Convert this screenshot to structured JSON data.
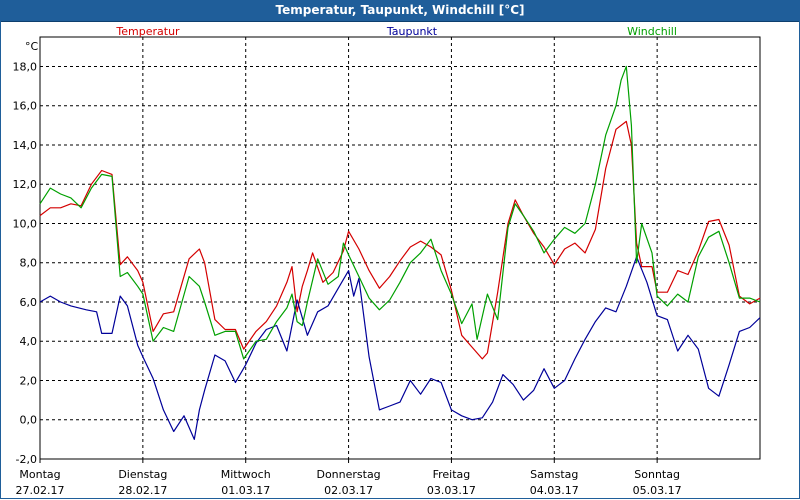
{
  "window": {
    "title": "Temperatur, Taupunkt, Windchill [°C]"
  },
  "chart_data": {
    "type": "line",
    "title": "Temperatur, Taupunkt, Windchill [°C]",
    "ylabel": "°C",
    "ylim": [
      -2,
      19.5
    ],
    "yticks": [
      "18,0",
      "16,0",
      "14,0",
      "12,0",
      "10,0",
      "8,0",
      "6,0",
      "4,0",
      "2,0",
      "0,0",
      "-2,0"
    ],
    "ytick_values": [
      18,
      16,
      14,
      12,
      10,
      8,
      6,
      4,
      2,
      0,
      -2
    ],
    "xlim": [
      0,
      7
    ],
    "grid": true,
    "legend_placement": "top",
    "xticks": [
      {
        "day": "Montag",
        "date": "27.02.17"
      },
      {
        "day": "Dienstag",
        "date": "28.02.17"
      },
      {
        "day": "Mittwoch",
        "date": "01.03.17"
      },
      {
        "day": "Donnerstag",
        "date": "02.03.17"
      },
      {
        "day": "Freitag",
        "date": "03.03.17"
      },
      {
        "day": "Samstag",
        "date": "04.03.17"
      },
      {
        "day": "Sonntag",
        "date": "05.03.17"
      }
    ],
    "series": [
      {
        "name": "Temperatur",
        "color": "#d40000",
        "points": [
          [
            0,
            10.4
          ],
          [
            0.1,
            10.8
          ],
          [
            0.2,
            10.8
          ],
          [
            0.3,
            11.0
          ],
          [
            0.4,
            10.9
          ],
          [
            0.5,
            12.0
          ],
          [
            0.6,
            12.7
          ],
          [
            0.7,
            12.5
          ],
          [
            0.78,
            7.9
          ],
          [
            0.85,
            8.3
          ],
          [
            0.95,
            7.6
          ],
          [
            1.0,
            7.0
          ],
          [
            1.1,
            4.5
          ],
          [
            1.2,
            5.4
          ],
          [
            1.3,
            5.5
          ],
          [
            1.45,
            8.2
          ],
          [
            1.55,
            8.7
          ],
          [
            1.6,
            8.0
          ],
          [
            1.7,
            5.1
          ],
          [
            1.8,
            4.6
          ],
          [
            1.9,
            4.6
          ],
          [
            1.98,
            3.6
          ],
          [
            2.1,
            4.5
          ],
          [
            2.2,
            5.0
          ],
          [
            2.3,
            5.8
          ],
          [
            2.4,
            7.0
          ],
          [
            2.45,
            7.8
          ],
          [
            2.5,
            5.5
          ],
          [
            2.55,
            6.8
          ],
          [
            2.6,
            7.6
          ],
          [
            2.65,
            8.5
          ],
          [
            2.75,
            7.0
          ],
          [
            2.85,
            7.5
          ],
          [
            2.95,
            8.6
          ],
          [
            3.0,
            9.6
          ],
          [
            3.1,
            8.7
          ],
          [
            3.2,
            7.6
          ],
          [
            3.3,
            6.7
          ],
          [
            3.4,
            7.3
          ],
          [
            3.5,
            8.1
          ],
          [
            3.6,
            8.8
          ],
          [
            3.7,
            9.1
          ],
          [
            3.8,
            8.8
          ],
          [
            3.9,
            8.4
          ],
          [
            4.0,
            6.6
          ],
          [
            4.1,
            4.3
          ],
          [
            4.2,
            3.7
          ],
          [
            4.3,
            3.1
          ],
          [
            4.35,
            3.4
          ],
          [
            4.45,
            6.5
          ],
          [
            4.55,
            10.0
          ],
          [
            4.62,
            11.2
          ],
          [
            4.7,
            10.4
          ],
          [
            4.8,
            9.5
          ],
          [
            4.9,
            8.8
          ],
          [
            5.0,
            7.9
          ],
          [
            5.1,
            8.7
          ],
          [
            5.2,
            9.0
          ],
          [
            5.3,
            8.5
          ],
          [
            5.4,
            9.7
          ],
          [
            5.5,
            12.8
          ],
          [
            5.6,
            14.8
          ],
          [
            5.7,
            15.2
          ],
          [
            5.75,
            14.0
          ],
          [
            5.8,
            9.0
          ],
          [
            5.85,
            7.8
          ],
          [
            5.95,
            7.8
          ],
          [
            6.0,
            6.5
          ],
          [
            6.1,
            6.5
          ],
          [
            6.2,
            7.6
          ],
          [
            6.3,
            7.4
          ],
          [
            6.4,
            8.6
          ],
          [
            6.5,
            10.1
          ],
          [
            6.6,
            10.2
          ],
          [
            6.7,
            8.9
          ],
          [
            6.8,
            6.3
          ],
          [
            6.9,
            5.9
          ],
          [
            7.0,
            6.2
          ]
        ]
      },
      {
        "name": "Taupunkt",
        "color": "#000099",
        "points": [
          [
            0,
            6.0
          ],
          [
            0.1,
            6.3
          ],
          [
            0.2,
            6.0
          ],
          [
            0.3,
            5.8
          ],
          [
            0.45,
            5.6
          ],
          [
            0.55,
            5.5
          ],
          [
            0.6,
            4.4
          ],
          [
            0.7,
            4.4
          ],
          [
            0.78,
            6.3
          ],
          [
            0.85,
            5.8
          ],
          [
            0.95,
            3.8
          ],
          [
            1.0,
            3.2
          ],
          [
            1.1,
            2.1
          ],
          [
            1.2,
            0.5
          ],
          [
            1.3,
            -0.6
          ],
          [
            1.4,
            0.2
          ],
          [
            1.5,
            -1.0
          ],
          [
            1.55,
            0.5
          ],
          [
            1.6,
            1.5
          ],
          [
            1.7,
            3.3
          ],
          [
            1.8,
            3.0
          ],
          [
            1.9,
            1.9
          ],
          [
            2.0,
            2.8
          ],
          [
            2.1,
            3.9
          ],
          [
            2.2,
            4.6
          ],
          [
            2.3,
            4.8
          ],
          [
            2.4,
            3.5
          ],
          [
            2.5,
            6.1
          ],
          [
            2.6,
            4.3
          ],
          [
            2.7,
            5.5
          ],
          [
            2.8,
            5.8
          ],
          [
            2.9,
            6.7
          ],
          [
            3.0,
            7.6
          ],
          [
            3.05,
            6.3
          ],
          [
            3.1,
            7.2
          ],
          [
            3.2,
            3.2
          ],
          [
            3.3,
            0.5
          ],
          [
            3.4,
            0.7
          ],
          [
            3.5,
            0.9
          ],
          [
            3.6,
            2.0
          ],
          [
            3.7,
            1.3
          ],
          [
            3.8,
            2.1
          ],
          [
            3.9,
            1.9
          ],
          [
            4.0,
            0.5
          ],
          [
            4.1,
            0.2
          ],
          [
            4.2,
            0.0
          ],
          [
            4.3,
            0.1
          ],
          [
            4.4,
            0.9
          ],
          [
            4.5,
            2.3
          ],
          [
            4.6,
            1.8
          ],
          [
            4.7,
            1.0
          ],
          [
            4.8,
            1.5
          ],
          [
            4.9,
            2.6
          ],
          [
            5.0,
            1.6
          ],
          [
            5.1,
            2.0
          ],
          [
            5.2,
            3.1
          ],
          [
            5.3,
            4.1
          ],
          [
            5.4,
            5.0
          ],
          [
            5.5,
            5.7
          ],
          [
            5.6,
            5.5
          ],
          [
            5.7,
            6.8
          ],
          [
            5.8,
            8.3
          ],
          [
            5.9,
            7.0
          ],
          [
            6.0,
            5.3
          ],
          [
            6.1,
            5.1
          ],
          [
            6.2,
            3.5
          ],
          [
            6.3,
            4.3
          ],
          [
            6.4,
            3.6
          ],
          [
            6.5,
            1.6
          ],
          [
            6.6,
            1.2
          ],
          [
            6.7,
            2.8
          ],
          [
            6.8,
            4.5
          ],
          [
            6.9,
            4.7
          ],
          [
            7.0,
            5.2
          ]
        ]
      },
      {
        "name": "Windchill",
        "color": "#00a000",
        "points": [
          [
            0,
            11.0
          ],
          [
            0.1,
            11.8
          ],
          [
            0.2,
            11.5
          ],
          [
            0.3,
            11.3
          ],
          [
            0.4,
            10.8
          ],
          [
            0.5,
            11.8
          ],
          [
            0.6,
            12.5
          ],
          [
            0.7,
            12.4
          ],
          [
            0.78,
            7.3
          ],
          [
            0.85,
            7.5
          ],
          [
            0.95,
            6.8
          ],
          [
            1.0,
            6.4
          ],
          [
            1.1,
            4.0
          ],
          [
            1.2,
            4.7
          ],
          [
            1.3,
            4.5
          ],
          [
            1.45,
            7.3
          ],
          [
            1.55,
            6.8
          ],
          [
            1.6,
            6.0
          ],
          [
            1.7,
            4.3
          ],
          [
            1.8,
            4.5
          ],
          [
            1.9,
            4.5
          ],
          [
            1.98,
            3.1
          ],
          [
            2.1,
            4.0
          ],
          [
            2.2,
            4.1
          ],
          [
            2.3,
            5.0
          ],
          [
            2.4,
            5.7
          ],
          [
            2.45,
            6.4
          ],
          [
            2.5,
            5.0
          ],
          [
            2.55,
            4.8
          ],
          [
            2.6,
            6.0
          ],
          [
            2.7,
            8.2
          ],
          [
            2.8,
            6.9
          ],
          [
            2.9,
            7.3
          ],
          [
            2.95,
            9.0
          ],
          [
            3.0,
            8.4
          ],
          [
            3.1,
            7.3
          ],
          [
            3.2,
            6.2
          ],
          [
            3.3,
            5.6
          ],
          [
            3.4,
            6.1
          ],
          [
            3.5,
            7.0
          ],
          [
            3.6,
            8.0
          ],
          [
            3.7,
            8.5
          ],
          [
            3.8,
            9.2
          ],
          [
            3.9,
            7.6
          ],
          [
            4.0,
            6.4
          ],
          [
            4.1,
            4.9
          ],
          [
            4.2,
            5.9
          ],
          [
            4.25,
            4.1
          ],
          [
            4.35,
            6.4
          ],
          [
            4.45,
            5.1
          ],
          [
            4.55,
            9.8
          ],
          [
            4.62,
            11.0
          ],
          [
            4.7,
            10.4
          ],
          [
            4.8,
            9.6
          ],
          [
            4.9,
            8.5
          ],
          [
            5.0,
            9.2
          ],
          [
            5.1,
            9.8
          ],
          [
            5.2,
            9.5
          ],
          [
            5.3,
            10.0
          ],
          [
            5.4,
            12.0
          ],
          [
            5.5,
            14.5
          ],
          [
            5.6,
            16.0
          ],
          [
            5.65,
            17.3
          ],
          [
            5.7,
            18.0
          ],
          [
            5.75,
            15.0
          ],
          [
            5.8,
            8.0
          ],
          [
            5.85,
            10.0
          ],
          [
            5.95,
            8.5
          ],
          [
            6.0,
            6.3
          ],
          [
            6.1,
            5.8
          ],
          [
            6.2,
            6.4
          ],
          [
            6.3,
            6.0
          ],
          [
            6.4,
            8.3
          ],
          [
            6.5,
            9.3
          ],
          [
            6.6,
            9.6
          ],
          [
            6.7,
            8.0
          ],
          [
            6.8,
            6.2
          ],
          [
            6.9,
            6.2
          ],
          [
            7.0,
            6.0
          ]
        ]
      }
    ]
  }
}
